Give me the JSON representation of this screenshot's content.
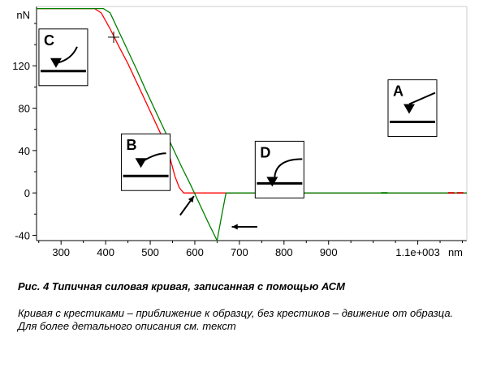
{
  "chart_data": {
    "type": "line",
    "xlabel": "nm",
    "ylabel": "nN",
    "xlim": [
      245,
      1210
    ],
    "ylim": [
      -45,
      176
    ],
    "x_ticks": [
      300,
      400,
      500,
      600,
      700,
      800,
      900
    ],
    "x_tick_extra": {
      "value": 1100,
      "label": "1.1e+003"
    },
    "y_ticks": [
      -40,
      0,
      40,
      80,
      120
    ],
    "grid": false,
    "series": [
      {
        "color": "#ff0000",
        "marker": "cross",
        "x": [
          245,
          375,
          390,
          410,
          430,
          450,
          470,
          490,
          510,
          530,
          545,
          555,
          565,
          575,
          590,
          620,
          700,
          800,
          900,
          1000,
          1100,
          1210
        ],
        "y": [
          174,
          174,
          170,
          155,
          138,
          122,
          104,
          86,
          68,
          50,
          32,
          16,
          5,
          0,
          0,
          0,
          0,
          0,
          0,
          0,
          0,
          0
        ],
        "markers": [
          {
            "x": 418,
            "y": 147
          },
          {
            "x": 528,
            "y": 38
          }
        ]
      },
      {
        "color": "#008000",
        "x": [
          245,
          395,
          410,
          430,
          450,
          470,
          490,
          510,
          530,
          550,
          570,
          590,
          610,
          630,
          650,
          660,
          670,
          680,
          700,
          800,
          900,
          1000,
          1100,
          1210
        ],
        "y": [
          174,
          174,
          170,
          152,
          134,
          116,
          97,
          79,
          61,
          43,
          25,
          8,
          -10,
          -28,
          -45,
          -22,
          0,
          0,
          0,
          0,
          0,
          0,
          0,
          0
        ]
      }
    ],
    "panels": [
      {
        "letter": "C",
        "x": 305,
        "y": 128
      },
      {
        "letter": "B",
        "x": 490,
        "y": 29
      },
      {
        "letter": "D",
        "x": 790,
        "y": 22
      },
      {
        "letter": "A",
        "x": 1088,
        "y": 80
      }
    ]
  },
  "caption": {
    "title": "Рис. 4 Типичная силовая кривая, записанная с помощью АСМ",
    "line1": " Кривая с крестиками – приближение к образцу, без крестиков – движение от образца.",
    "line2": " Для более детального описания см. текст"
  }
}
